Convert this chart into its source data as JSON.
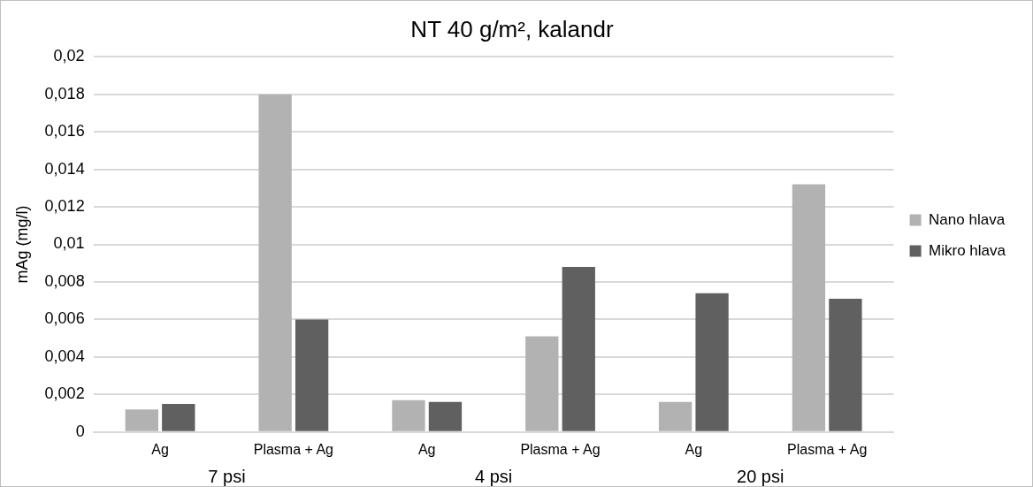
{
  "chart_data": {
    "type": "bar",
    "title": "NT 40 g/m², kalandr",
    "ylabel": "mAg (mg/l)",
    "categories": [
      "Ag",
      "Plasma + Ag",
      "Ag",
      "Plasma + Ag",
      "Ag",
      "Plasma + Ag"
    ],
    "series": [
      {
        "name": "Nano hlava",
        "color": "#b2b2b2",
        "values": [
          0.0012,
          0.018,
          0.0017,
          0.0051,
          0.0016,
          0.0132
        ]
      },
      {
        "name": "Mikro hlava",
        "color": "#606060",
        "values": [
          0.0015,
          0.006,
          0.0016,
          0.0088,
          0.0074,
          0.0071
        ]
      }
    ],
    "ylim": [
      0,
      0.02
    ],
    "yticks": [
      {
        "value": 0,
        "label": "0"
      },
      {
        "value": 0.002,
        "label": "0,002"
      },
      {
        "value": 0.004,
        "label": "0,004"
      },
      {
        "value": 0.006,
        "label": "0,006"
      },
      {
        "value": 0.008,
        "label": "0,008"
      },
      {
        "value": 0.01,
        "label": "0,01"
      },
      {
        "value": 0.012,
        "label": "0,012"
      },
      {
        "value": 0.014,
        "label": "0,014"
      },
      {
        "value": 0.016,
        "label": "0,016"
      },
      {
        "value": 0.018,
        "label": "0,018"
      },
      {
        "value": 0.02,
        "label": "0,02"
      }
    ],
    "annotations": [
      "7 psi",
      "4 psi",
      "20 psi"
    ],
    "grid": "y",
    "legend": "right"
  }
}
